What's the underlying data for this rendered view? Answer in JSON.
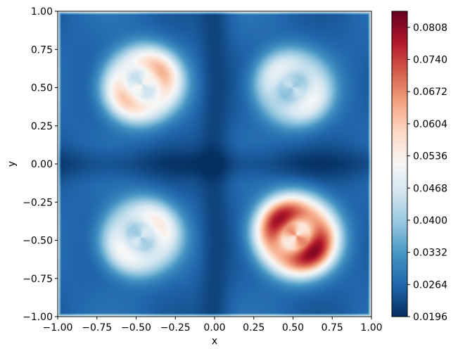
{
  "chart_data": {
    "type": "heatmap",
    "title": "",
    "xlabel": "x",
    "ylabel": "y",
    "xlim": [
      -1.0,
      1.0
    ],
    "ylim": [
      -1.0,
      1.0
    ],
    "x_ticks": [
      "−1.00",
      "−0.75",
      "−0.50",
      "−0.25",
      "0.00",
      "0.25",
      "0.50",
      "0.75",
      "1.00"
    ],
    "y_ticks": [
      "−1.00",
      "−0.75",
      "−0.50",
      "−0.25",
      "0.00",
      "0.25",
      "0.50",
      "0.75",
      "1.00"
    ],
    "colormap": "RdBu_r",
    "colorbar": {
      "min": 0.0196,
      "max": 0.0842,
      "tick_values": [
        0.0196,
        0.0264,
        0.0332,
        0.04,
        0.0468,
        0.0536,
        0.0604,
        0.0672,
        0.074,
        0.0808
      ],
      "tick_labels": [
        "0.0196",
        "0.0264",
        "0.0332",
        "0.0400",
        "0.0468",
        "0.0536",
        "0.0604",
        "0.0672",
        "0.0740",
        "0.0808"
      ]
    },
    "grid": false,
    "background_level": 0.026,
    "blobs": [
      {
        "region": "top-left",
        "center": [
          -0.46,
          0.52
        ],
        "radius": 0.27,
        "peak": 0.062
      },
      {
        "region": "top-right",
        "center": [
          0.5,
          0.5
        ],
        "radius": 0.27,
        "peak": 0.05
      },
      {
        "region": "bottom-left",
        "center": [
          -0.47,
          -0.48
        ],
        "radius": 0.27,
        "peak": 0.054
      },
      {
        "region": "bottom-right",
        "center": [
          0.52,
          -0.47
        ],
        "radius": 0.28,
        "peak": 0.08
      }
    ],
    "colors": {
      "low": "#053061",
      "mid": "#f7f7f7",
      "high": "#67001f"
    }
  }
}
